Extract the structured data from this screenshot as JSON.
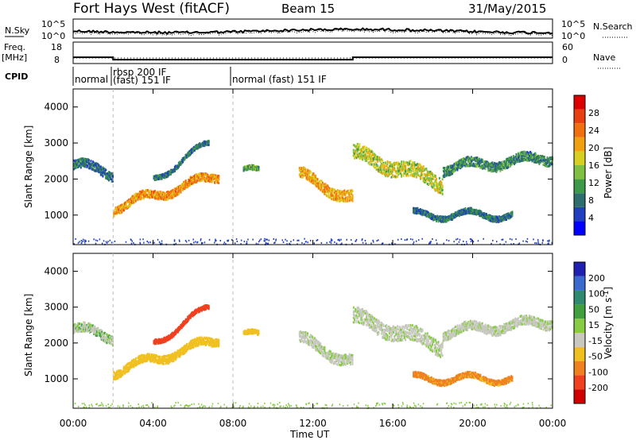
{
  "header": {
    "station": "Fort Hays West (fitACF)",
    "beam": "Beam 15",
    "date": "31/May/2015"
  },
  "noise_panel": {
    "left_label": "N.Sky",
    "right_label": "N.Search",
    "left_ticks": [
      "10^5",
      "10^0"
    ],
    "right_ticks": [
      "10^5",
      "10^0"
    ]
  },
  "freq_panel": {
    "left_label": "Freq.",
    "left_unit": "[MHz]",
    "right_label": "Nave",
    "left_ticks": [
      "18",
      "8"
    ],
    "right_ticks": [
      "60",
      "0"
    ],
    "freq_steps": [
      {
        "start_h": 0.0,
        "end_h": 2.0,
        "mhz": 11.0
      },
      {
        "start_h": 2.0,
        "end_h": 14.0,
        "mhz": 9.7
      },
      {
        "start_h": 14.0,
        "end_h": 24.0,
        "mhz": 11.0
      }
    ]
  },
  "cpid": {
    "label": "CPID",
    "segments": [
      {
        "start_h": 0.0,
        "text": "normal",
        "line2": ""
      },
      {
        "start_h": 2.0,
        "text": "rbsp 200 IF",
        "line2": "(fast) 151 IF"
      },
      {
        "start_h": 8.0,
        "text": "normal (fast) 151 IF",
        "line2": ""
      }
    ]
  },
  "x_axis": {
    "label": "Time UT",
    "ticks": [
      "00:00",
      "04:00",
      "08:00",
      "12:00",
      "16:00",
      "20:00",
      "00:00"
    ],
    "range_hours": [
      0,
      24
    ]
  },
  "power_panel": {
    "ylabel": "Slant Range [km]",
    "yticks": [
      "1000",
      "2000",
      "3000",
      "4000"
    ],
    "colorbar_label": "Power [dB]",
    "colorbar_ticks": [
      "4",
      "8",
      "12",
      "16",
      "20",
      "24",
      "28"
    ],
    "colors": [
      "#0000ff",
      "#1f3fbf",
      "#2e6e6e",
      "#3c9a4a",
      "#80c040",
      "#d8d020",
      "#f0a010",
      "#f07010",
      "#e84010",
      "#dd0000"
    ]
  },
  "velocity_panel": {
    "ylabel": "Slant Range [km]",
    "yticks": [
      "1000",
      "2000",
      "3000",
      "4000"
    ],
    "colorbar_label": "Velocity [m s^-1]",
    "colorbar_ticks": [
      "200",
      "100",
      "50",
      "15",
      "-15",
      "-50",
      "-100",
      "-200"
    ],
    "colors": [
      "#2020b0",
      "#3a6ad0",
      "#2f8a70",
      "#40a040",
      "#88cc44",
      "#c8c8c0",
      "#f0c020",
      "#f08020",
      "#f04020",
      "#d00000"
    ]
  },
  "chart_data": {
    "type": "heatmap",
    "title": "Fort Hays West (fitACF) Beam 15 31/May/2015",
    "xlabel": "Time UT",
    "ylabel": "Slant Range [km]",
    "xlim_hours": [
      0,
      24
    ],
    "ylim_km": [
      180,
      4500
    ],
    "panels": [
      "Power [dB]",
      "Velocity [m s^-1]"
    ],
    "echo_bands": [
      {
        "start_h": 0.0,
        "end_h": 2.0,
        "range_km": [
          2400,
          2150
        ],
        "width_km": 250,
        "power_db": 6,
        "velocity_ms": 5
      },
      {
        "start_h": 2.0,
        "end_h": 7.3,
        "range_km": [
          1200,
          2100
        ],
        "width_km": 220,
        "power_db": 19,
        "velocity_ms": -30
      },
      {
        "start_h": 4.0,
        "end_h": 6.8,
        "range_km": [
          2000,
          3000
        ],
        "width_km": 120,
        "power_db": 6,
        "velocity_ms": -150
      },
      {
        "start_h": 8.5,
        "end_h": 9.3,
        "range_km": [
          2200,
          2200
        ],
        "width_km": 120,
        "power_db": 10,
        "velocity_ms": -30
      },
      {
        "start_h": 11.3,
        "end_h": 14.0,
        "range_km": [
          2100,
          1450
        ],
        "width_km": 300,
        "power_db": 18,
        "velocity_ms": 0
      },
      {
        "start_h": 14.0,
        "end_h": 18.5,
        "range_km": [
          2700,
          1900
        ],
        "width_km": 420,
        "power_db": 14,
        "velocity_ms": 0
      },
      {
        "start_h": 18.5,
        "end_h": 24.0,
        "range_km": [
          2300,
          2600
        ],
        "width_km": 260,
        "power_db": 8,
        "velocity_ms": 0
      },
      {
        "start_h": 17.0,
        "end_h": 22.0,
        "range_km": [
          1000,
          1000
        ],
        "width_km": 150,
        "power_db": 6,
        "velocity_ms": -60
      }
    ]
  }
}
